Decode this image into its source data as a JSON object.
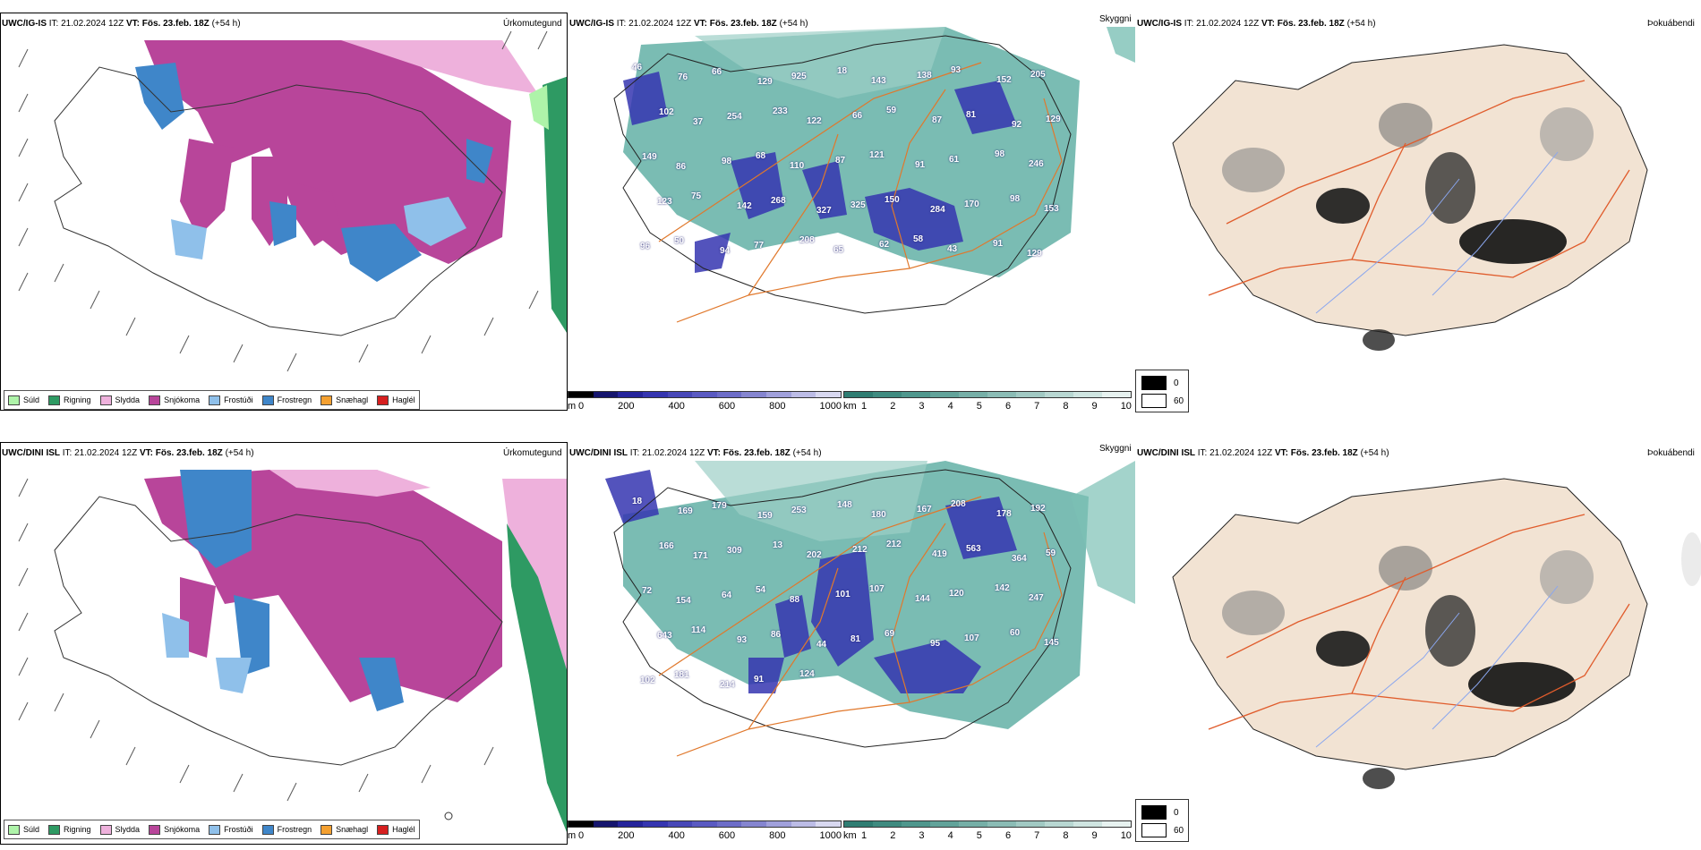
{
  "colors": {
    "snow": "#b8459a",
    "freezing_rain": "#3f86c9",
    "frost": "#8fc0ea",
    "sleet": "#eeb1dc",
    "rain": "#2e9a63",
    "drizzle": "#aef3a9",
    "snow_hail": "#f4a030",
    "hail": "#d61f1f",
    "cloud": "#4ea69a",
    "land": "#f2e3d3",
    "road": "#e05c2c",
    "river": "#8aa6ee"
  },
  "panels": {
    "top": {
      "left": {
        "model": "UWC/IG-IS",
        "it_label": "IT:",
        "it": "21.02.2024 12Z",
        "vt_label": "VT:",
        "vt": "Fös. 23.feb. 18Z",
        "offset": "(+54 h)",
        "title": "Úrkomutegund"
      },
      "middle": {
        "model": "UWC/IG-IS",
        "it_label": "IT:",
        "it": "21.02.2024 12Z",
        "vt_label": "VT:",
        "vt": "Fös. 23.feb. 18Z",
        "offset": "(+54 h)",
        "title": "Skyggni"
      },
      "right": {
        "model": "UWC/IG-IS",
        "it_label": "IT:",
        "it": "21.02.2024 12Z",
        "vt_label": "VT:",
        "vt": "Fös. 23.feb. 18Z",
        "offset": "(+54 h)",
        "title": "Þokuábendi"
      }
    },
    "bottom": {
      "left": {
        "model": "UWC/DINI ISL",
        "it_label": "IT:",
        "it": "21.02.2024 12Z",
        "vt_label": "VT:",
        "vt": "Fös. 23.feb. 18Z",
        "offset": "(+54 h)",
        "title": "Úrkomutegund"
      },
      "middle": {
        "model": "UWC/DINI ISL",
        "it_label": "IT:",
        "it": "21.02.2024 12Z",
        "vt_label": "VT:",
        "vt": "Fös. 23.feb. 18Z",
        "offset": "(+54 h)",
        "title": "Skyggni"
      },
      "right": {
        "model": "UWC/DINI ISL",
        "it_label": "IT:",
        "it": "21.02.2024 12Z",
        "vt_label": "VT:",
        "vt": "Fös. 23.feb. 18Z",
        "offset": "(+54 h)",
        "title": "Þokuábendi"
      }
    }
  },
  "precip_legend": [
    {
      "label": "Súld",
      "color": "#aef3a9"
    },
    {
      "label": "Rigning",
      "color": "#2e9a63"
    },
    {
      "label": "Slydda",
      "color": "#eeb1dc"
    },
    {
      "label": "Snjókoma",
      "color": "#b8459a"
    },
    {
      "label": "Frostúði",
      "color": "#8fc0ea"
    },
    {
      "label": "Frostregn",
      "color": "#3f86c9"
    },
    {
      "label": "Snæhagl",
      "color": "#f4a030"
    },
    {
      "label": "Haglél",
      "color": "#d61f1f"
    }
  ],
  "ceiling_bar": {
    "unit": "m",
    "ticks": [
      "0",
      "200",
      "400",
      "600",
      "800",
      "1000"
    ],
    "colors": [
      "#000000",
      "#15156e",
      "#25249b",
      "#3535b0",
      "#4848b8",
      "#5a5ac2",
      "#6d6dc8",
      "#8585d0",
      "#a0a0db",
      "#bcbce6",
      "#d8d8f0"
    ]
  },
  "visibility_bar": {
    "unit": "km",
    "ticks": [
      "1",
      "2",
      "3",
      "4",
      "5",
      "6",
      "7",
      "8",
      "9",
      "10"
    ],
    "colors": [
      "#2f7d72",
      "#3f8b80",
      "#4f978d",
      "#62a39a",
      "#76afa7",
      "#8bbcb5",
      "#a1c9c3",
      "#b8d7d2",
      "#cfe5e1",
      "#e7f2f0"
    ]
  },
  "fog_legend": [
    {
      "label": "0",
      "color": "#000000"
    },
    {
      "label": "60",
      "color": "#ffffff"
    }
  ],
  "ceiling_labels_top": [
    "46",
    "76",
    "66",
    "129",
    "925",
    "18",
    "143",
    "138",
    "93",
    "152",
    "205",
    "102",
    "37",
    "254",
    "233",
    "122",
    "66",
    "59",
    "87",
    "81",
    "92",
    "129",
    "149",
    "86",
    "98",
    "68",
    "110",
    "87",
    "121",
    "91",
    "61",
    "98",
    "246",
    "123",
    "75",
    "142",
    "268",
    "327",
    "325",
    "150",
    "284",
    "170",
    "98",
    "153",
    "96",
    "50",
    "94",
    "77",
    "208",
    "65",
    "62",
    "58",
    "43",
    "91",
    "129"
  ],
  "ceiling_labels_bottom": [
    "18",
    "169",
    "179",
    "159",
    "253",
    "148",
    "180",
    "167",
    "208",
    "178",
    "192",
    "166",
    "171",
    "309",
    "13",
    "202",
    "212",
    "212",
    "419",
    "563",
    "364",
    "59",
    "72",
    "154",
    "64",
    "54",
    "88",
    "101",
    "107",
    "144",
    "120",
    "142",
    "247",
    "643",
    "114",
    "93",
    "86",
    "44",
    "81",
    "69",
    "95",
    "107",
    "60",
    "145",
    "102",
    "181",
    "214",
    "91",
    "124"
  ]
}
